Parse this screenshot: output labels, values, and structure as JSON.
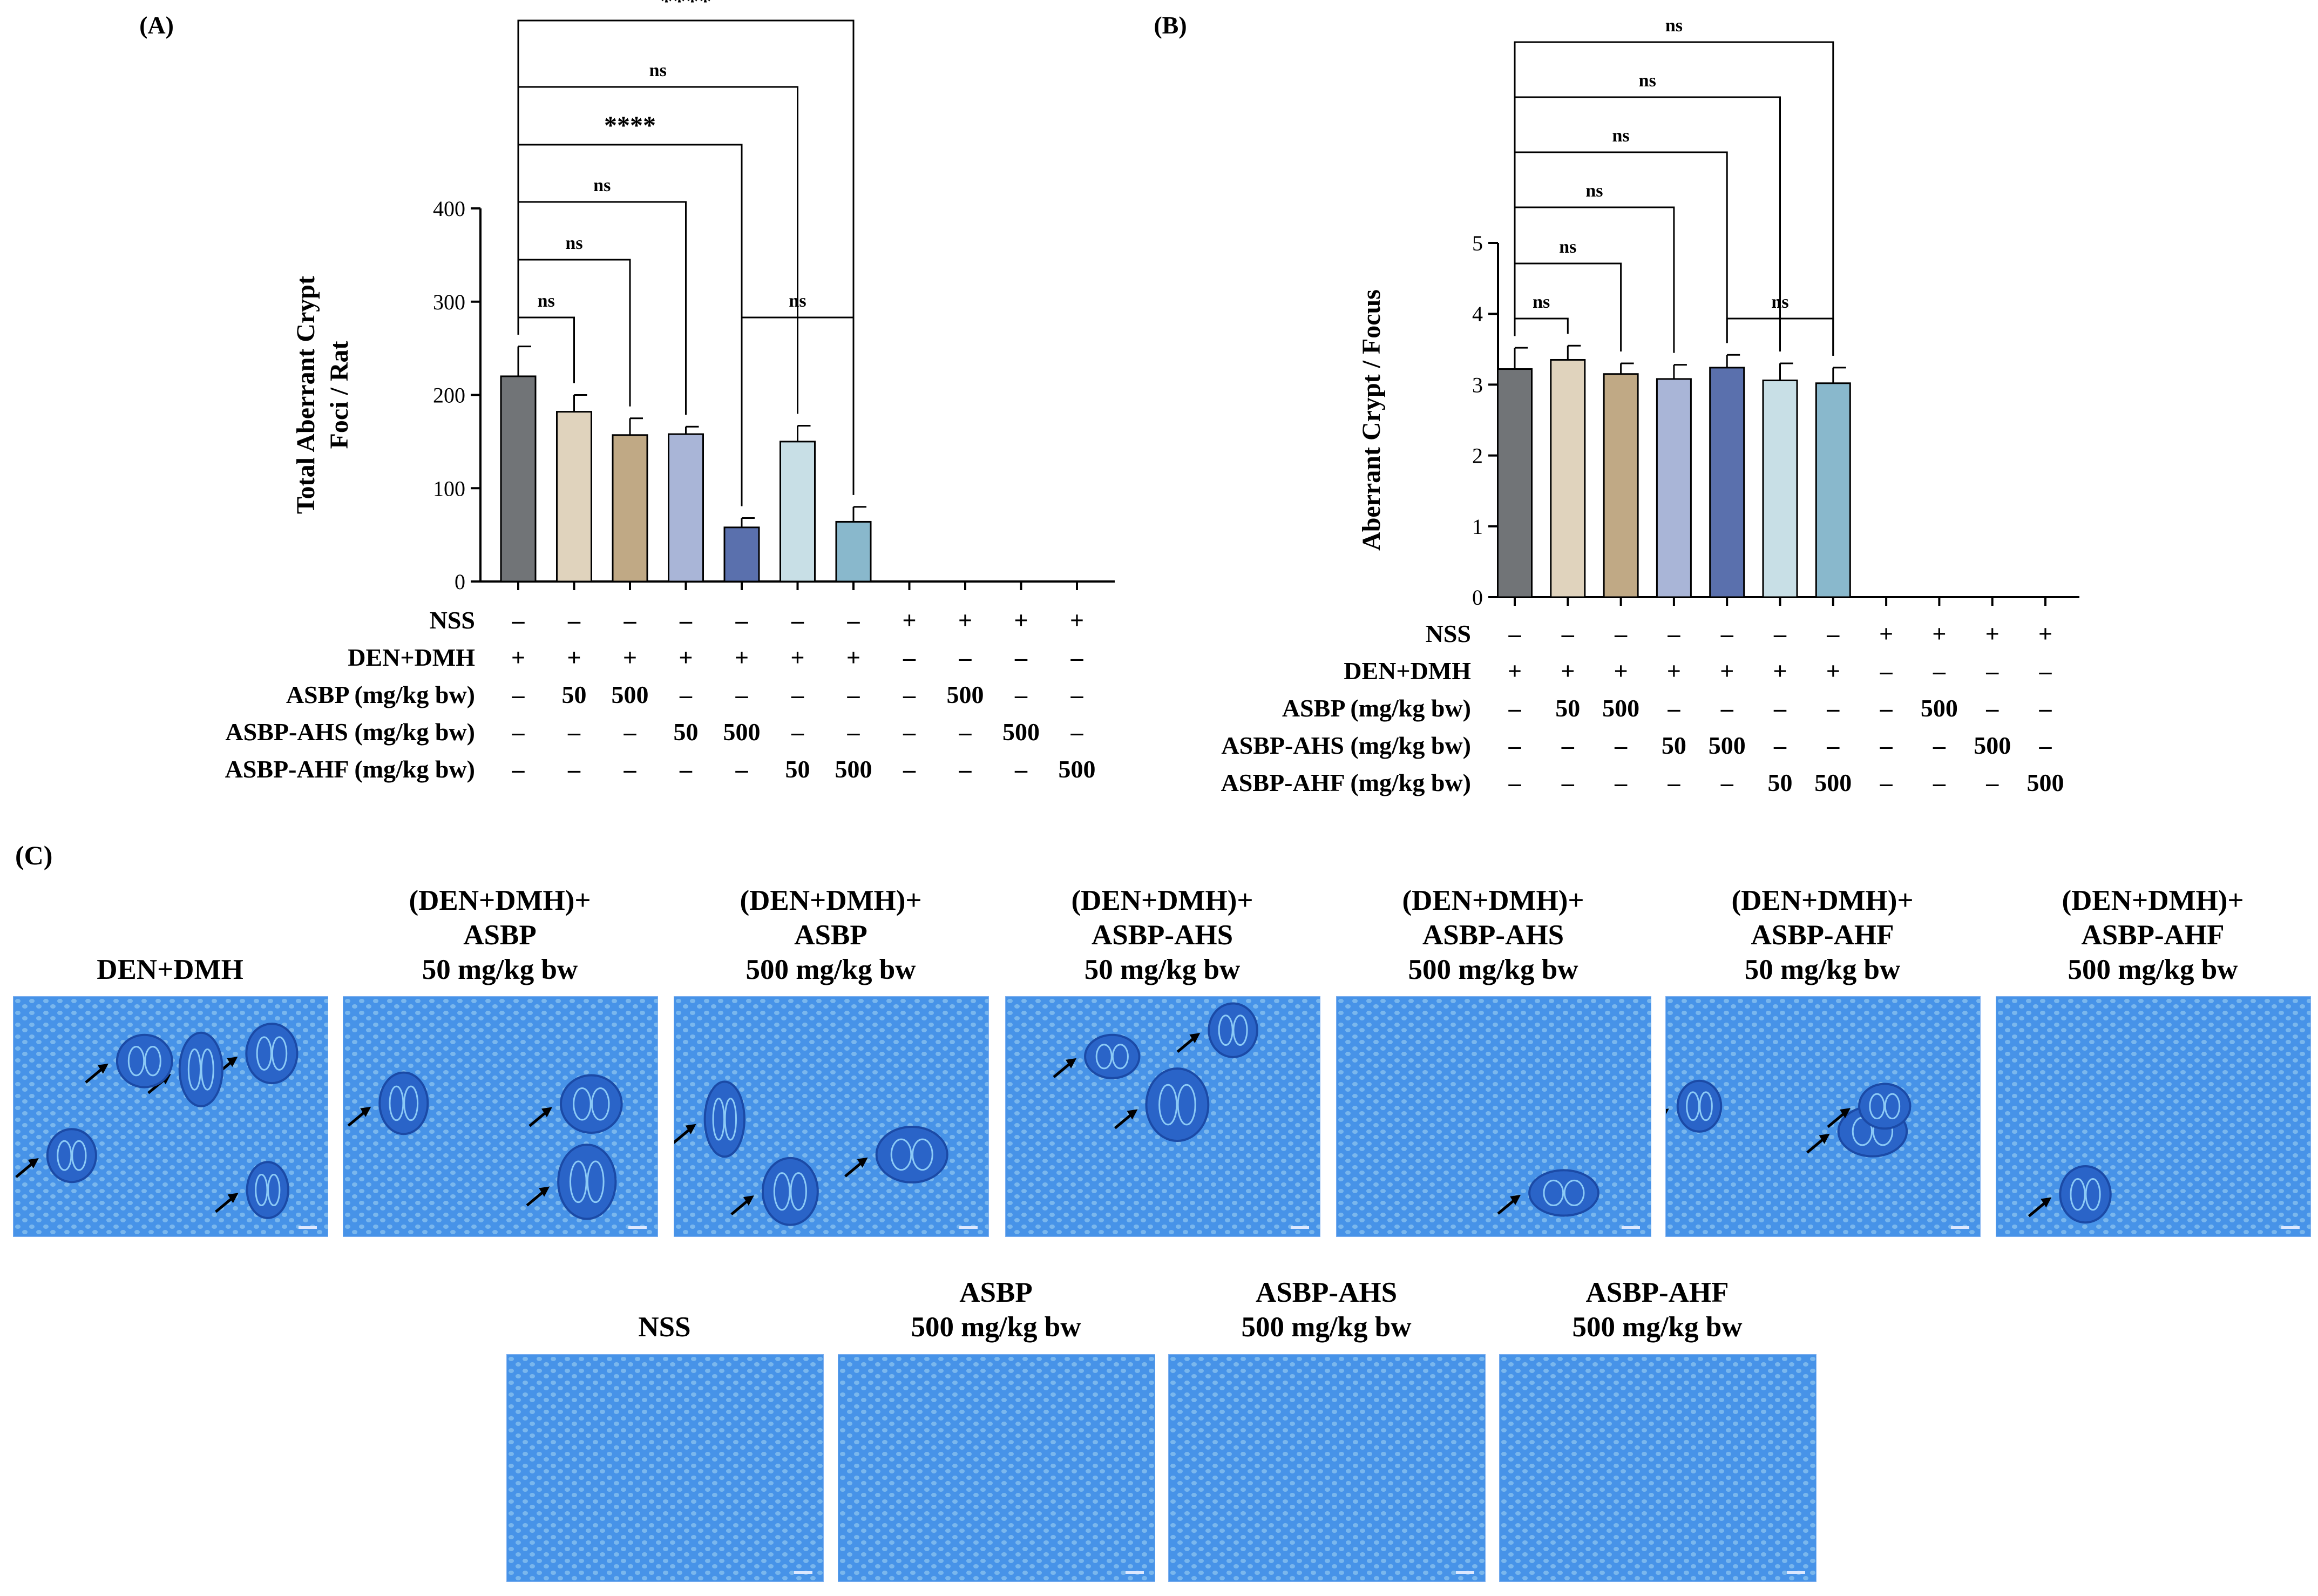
{
  "colors": {
    "bars": [
      "#717477",
      "#e0d3bd",
      "#c0a985",
      "#a9b5d7",
      "#5a70ad",
      "#c8dfe6",
      "#89b8cc"
    ],
    "tissue_base": "#4d9ef0",
    "tissue_dark": "#2a64c8",
    "tissue_light": "#8ccaf6"
  },
  "chart_data": [
    {
      "panel_label": "(A)",
      "type": "bar",
      "ylabel": [
        "Total Aberrant Crypt",
        "Foci / Rat"
      ],
      "ylim": [
        0,
        400
      ],
      "yticks": [
        "0",
        "100",
        "200",
        "300",
        "400"
      ],
      "n_groups": 11,
      "values": [
        220,
        182,
        157,
        158,
        58,
        150,
        64,
        0,
        0,
        0,
        0
      ],
      "errors": [
        32,
        18,
        18,
        8,
        10,
        17,
        16,
        0,
        0,
        0,
        0
      ],
      "significance": [
        {
          "from": 1,
          "to": 2,
          "label": "ns"
        },
        {
          "from": 1,
          "to": 3,
          "label": "ns"
        },
        {
          "from": 1,
          "to": 4,
          "label": "ns"
        },
        {
          "from": 1,
          "to": 5,
          "label": "****"
        },
        {
          "from": 1,
          "to": 6,
          "label": "ns"
        },
        {
          "from": 1,
          "to": 7,
          "label": "****"
        },
        {
          "from": 5,
          "to": 7,
          "label": "ns"
        }
      ],
      "table": {
        "rows": [
          {
            "label": "NSS",
            "cells": [
              "–",
              "–",
              "–",
              "–",
              "–",
              "–",
              "–",
              "+",
              "+",
              "+",
              "+"
            ]
          },
          {
            "label": "DEN+DMH",
            "cells": [
              "+",
              "+",
              "+",
              "+",
              "+",
              "+",
              "+",
              "–",
              "–",
              "–",
              "–"
            ]
          },
          {
            "label": "ASBP (mg/kg bw)",
            "cells": [
              "–",
              "50",
              "500",
              "–",
              "–",
              "–",
              "–",
              "–",
              "500",
              "–",
              "–"
            ]
          },
          {
            "label": "ASBP-AHS (mg/kg bw)",
            "cells": [
              "–",
              "–",
              "–",
              "50",
              "500",
              "–",
              "–",
              "–",
              "–",
              "500",
              "–"
            ]
          },
          {
            "label": "ASBP-AHF (mg/kg bw)",
            "cells": [
              "–",
              "–",
              "–",
              "–",
              "–",
              "50",
              "500",
              "–",
              "–",
              "–",
              "500"
            ]
          }
        ]
      }
    },
    {
      "panel_label": "(B)",
      "type": "bar",
      "ylabel": [
        "Aberrant Crypt / Focus"
      ],
      "ylim": [
        0,
        5
      ],
      "yticks": [
        "0",
        "1",
        "2",
        "3",
        "4",
        "5"
      ],
      "n_groups": 11,
      "values": [
        3.22,
        3.35,
        3.15,
        3.08,
        3.24,
        3.06,
        3.02,
        0,
        0,
        0,
        0
      ],
      "errors": [
        0.3,
        0.2,
        0.15,
        0.2,
        0.18,
        0.24,
        0.22,
        0,
        0,
        0,
        0
      ],
      "significance": [
        {
          "from": 1,
          "to": 2,
          "label": "ns"
        },
        {
          "from": 1,
          "to": 3,
          "label": "ns"
        },
        {
          "from": 1,
          "to": 4,
          "label": "ns"
        },
        {
          "from": 1,
          "to": 5,
          "label": "ns"
        },
        {
          "from": 1,
          "to": 6,
          "label": "ns"
        },
        {
          "from": 1,
          "to": 7,
          "label": "ns"
        },
        {
          "from": 5,
          "to": 7,
          "label": "ns"
        }
      ],
      "table": {
        "rows": [
          {
            "label": "NSS",
            "cells": [
              "–",
              "–",
              "–",
              "–",
              "–",
              "–",
              "–",
              "+",
              "+",
              "+",
              "+"
            ]
          },
          {
            "label": "DEN+DMH",
            "cells": [
              "+",
              "+",
              "+",
              "+",
              "+",
              "+",
              "+",
              "–",
              "–",
              "–",
              "–"
            ]
          },
          {
            "label": "ASBP (mg/kg bw)",
            "cells": [
              "–",
              "50",
              "500",
              "–",
              "–",
              "–",
              "–",
              "–",
              "500",
              "–",
              "–"
            ]
          },
          {
            "label": "ASBP-AHS (mg/kg bw)",
            "cells": [
              "–",
              "–",
              "–",
              "50",
              "500",
              "–",
              "–",
              "–",
              "–",
              "500",
              "–"
            ]
          },
          {
            "label": "ASBP-AHF (mg/kg bw)",
            "cells": [
              "–",
              "–",
              "–",
              "–",
              "–",
              "50",
              "500",
              "–",
              "–",
              "–",
              "500"
            ]
          }
        ]
      }
    }
  ],
  "panel_c": {
    "label": "(C)",
    "images": [
      {
        "caption": [
          "DEN+DMH"
        ],
        "foci": 5
      },
      {
        "caption": [
          "(DEN+DMH)+",
          "ASBP",
          "50 mg/kg bw"
        ],
        "foci": 3
      },
      {
        "caption": [
          "(DEN+DMH)+",
          "ASBP",
          "500 mg/kg bw"
        ],
        "foci": 3
      },
      {
        "caption": [
          "(DEN+DMH)+",
          "ASBP-AHS",
          "50 mg/kg bw"
        ],
        "foci": 3
      },
      {
        "caption": [
          "(DEN+DMH)+",
          "ASBP-AHS",
          "500 mg/kg bw"
        ],
        "foci": 1
      },
      {
        "caption": [
          "(DEN+DMH)+",
          "ASBP-AHF",
          "50 mg/kg bw"
        ],
        "foci": 3
      },
      {
        "caption": [
          "(DEN+DMH)+",
          "ASBP-AHF",
          "500 mg/kg bw"
        ],
        "foci": 1
      },
      {
        "caption": [
          "NSS"
        ],
        "foci": 0
      },
      {
        "caption": [
          "ASBP",
          "500 mg/kg bw"
        ],
        "foci": 0
      },
      {
        "caption": [
          "ASBP-AHS",
          "500 mg/kg bw"
        ],
        "foci": 0
      },
      {
        "caption": [
          "ASBP-AHF",
          "500 mg/kg bw"
        ],
        "foci": 0
      }
    ]
  }
}
